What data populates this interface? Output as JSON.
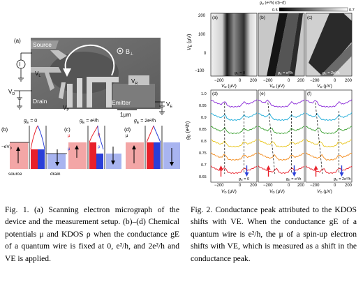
{
  "figure1": {
    "panel_a_label": "(a)",
    "labels": {
      "source": "Source",
      "drain": "Drain",
      "emitter": "Emitter",
      "vl": "V",
      "vl_sub": "L",
      "vr": "V",
      "vr_sub": "R",
      "vp": "V",
      "vp_sub": "P",
      "vd": "V",
      "vd_sub": "D",
      "ve": "V",
      "ve_sub": "E",
      "bfield": "B",
      "bfield_sub": "⊥",
      "current": "I",
      "scalebar": "1μm"
    },
    "panels_bcd": [
      {
        "label": "(b)",
        "title": "g",
        "title_sub": "E",
        "title_tail": " = 0"
      },
      {
        "label": "(c)",
        "title": "g",
        "title_sub": "E",
        "title_tail": " = e²/h"
      },
      {
        "label": "(d)",
        "title": "g",
        "title_sub": "E",
        "title_tail": " = 2e²/h"
      }
    ],
    "bottom_labels": {
      "source": "source",
      "drain": "drain",
      "evd": "−eV"
    }
  },
  "figure2": {
    "colorbar": {
      "label": "g",
      "label_sub": "D",
      "label_tail": " (e²/h) (d)−(f)",
      "min": "0.5",
      "max": "0.7"
    },
    "top_panels": [
      {
        "label": "(a)",
        "annot": "g",
        "annot_sub": "E",
        "annot_tail": " = 0"
      },
      {
        "label": "(b)",
        "annot": "g",
        "annot_sub": "E",
        "annot_tail": " = e²/h"
      },
      {
        "label": "(c)",
        "annot": "g",
        "annot_sub": "E",
        "annot_tail": " = 2e²/h"
      }
    ],
    "bottom_panels": [
      {
        "label": "(d)",
        "annot": "g",
        "annot_sub": "E",
        "annot_tail": " = 0"
      },
      {
        "label": "(e)",
        "annot": "g",
        "annot_sub": "E",
        "annot_tail": " = e²/h"
      },
      {
        "label": "(f)",
        "annot": "g",
        "annot_sub": "E",
        "annot_tail": " = 2e²/h"
      }
    ],
    "ylabel_top": "V",
    "ylabel_top_sub": "E",
    "ylabel_top_unit": " (μV)",
    "ylabel_bottom": "g",
    "ylabel_bottom_sub": "D",
    "ylabel_bottom_unit": " (e²/h)",
    "xlabel": "V",
    "xlabel_sub": "D",
    "xlabel_unit": " (μV)",
    "top_yticks": [
      "200",
      "100",
      "0",
      "−100"
    ],
    "bottom_yticks": [
      "1.0",
      "0.95",
      "0.9",
      "0.85",
      "0.8",
      "0.75",
      "0.7",
      "0.65"
    ],
    "xticks": [
      "−200",
      "0",
      "200"
    ]
  },
  "captions": {
    "fig1": "Fig. 1. (a) Scanning electron micrograph of the device and the measurement setup. (b)–(d) Chemical potentials μ and KDOS ρ when the conductance gE of a quantum wire is fixed at 0, e²/h, and 2e²/h and VE is applied.",
    "fig2": "Fig. 2. Conductance peak attributed to the KDOS shifts with VE. When the conductance gE of a quantum wire is e²/h, the μ of a spin-up electron shifts with VE, which is measured as a shift in the conductance peak."
  },
  "colors": {
    "red": "#e8202a",
    "blue": "#2a3fd8",
    "orange": "#f28a1a",
    "yellow": "#e8c41a",
    "green": "#3aa030",
    "cyan": "#1aaad8",
    "purple": "#8a2ad8",
    "pink": "#f0a0a8",
    "lightblue": "#a8b4f0"
  }
}
